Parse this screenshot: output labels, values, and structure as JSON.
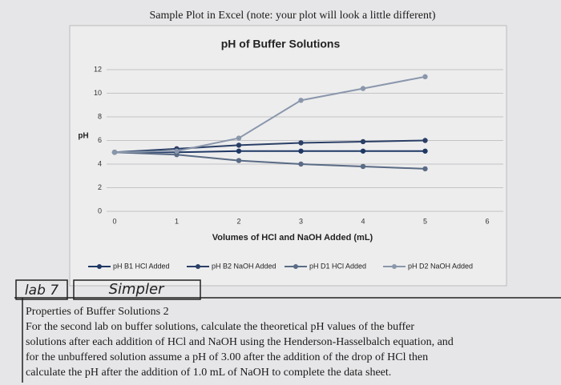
{
  "caption": "Sample Plot in Excel (note: your plot will look a little different)",
  "chart_data": {
    "type": "line",
    "title": "pH of Buffer Solutions",
    "x_label": "Volumes of HCl and NaOH Added (mL)",
    "y_label": "pH",
    "x": [
      0,
      1,
      2,
      3,
      4,
      5
    ],
    "series": [
      {
        "name": "pH B1 HCl Added",
        "color": "#1f3864",
        "values": [
          5,
          5,
          5.1,
          5.1,
          5.1,
          5.1
        ]
      },
      {
        "name": "pH B2 NaOH Added",
        "color": "#2a3f66",
        "values": [
          5,
          5.3,
          5.6,
          5.8,
          5.9,
          6
        ]
      },
      {
        "name": "pH D1 HCl Added",
        "color": "#5a6b85",
        "values": [
          5,
          4.8,
          4.3,
          4,
          3.8,
          3.6
        ]
      },
      {
        "name": "pH D2 NaOH Added",
        "color": "#8a97ab",
        "values": [
          5,
          5.1,
          6.2,
          9.4,
          10.4,
          11.4
        ]
      }
    ],
    "xlim": [
      0,
      6
    ],
    "xticks": [
      0,
      1,
      2,
      3,
      4,
      5,
      6
    ],
    "ylim": [
      0,
      12
    ],
    "yticks": [
      0,
      2,
      4,
      6,
      8,
      10,
      12
    ],
    "grid": true,
    "legend": "bottom"
  },
  "document": {
    "handwriting": [
      "lab 7",
      "Simpler"
    ],
    "heading": "Properties of Buffer Solutions 2",
    "lines": [
      "For the second lab on buffer solutions, calculate the theoretical pH values of the buffer",
      "solutions after each addition of HCl and NaOH using the Henderson-Hasselbalch equation, and",
      "for the unbuffered solution assume a pH of 3.00 after the addition of the drop of HCl then",
      "calculate the pH after the addition of 1.0 mL of NaOH to complete the data sheet."
    ]
  }
}
